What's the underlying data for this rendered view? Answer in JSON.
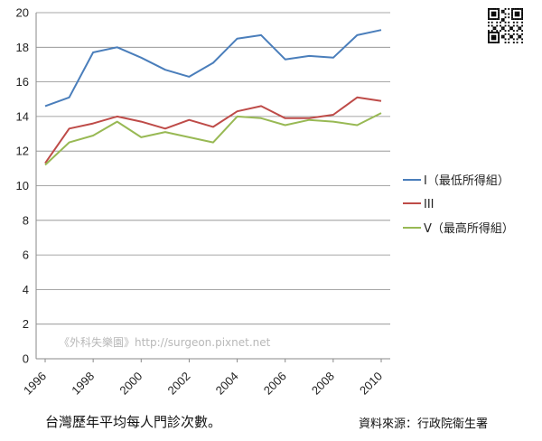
{
  "chart_data": {
    "type": "line",
    "x": [
      1996,
      1997,
      1998,
      1999,
      2000,
      2001,
      2002,
      2003,
      2004,
      2005,
      2006,
      2007,
      2008,
      2009,
      2010
    ],
    "x_tick_labels": [
      "1996",
      "1998",
      "2000",
      "2002",
      "2004",
      "2006",
      "2008",
      "2010"
    ],
    "y_tick_labels": [
      "0",
      "2",
      "4",
      "6",
      "8",
      "10",
      "12",
      "14",
      "16",
      "18",
      "20"
    ],
    "ylim": [
      0,
      20
    ],
    "grid": true,
    "legend_position": "right",
    "title": "",
    "xlabel": "",
    "ylabel": "",
    "series": [
      {
        "name": "I（最低所得組）",
        "color": "#4a7ebb",
        "values": [
          14.6,
          15.1,
          17.7,
          18.0,
          17.4,
          16.7,
          16.3,
          17.1,
          18.5,
          18.7,
          17.3,
          17.5,
          17.4,
          18.7,
          19.0
        ]
      },
      {
        "name": "III",
        "color": "#be4b48",
        "values": [
          11.3,
          13.3,
          13.6,
          14.0,
          13.7,
          13.3,
          13.8,
          13.4,
          14.3,
          14.6,
          13.9,
          13.9,
          14.1,
          15.1,
          14.9
        ]
      },
      {
        "name": "V（最高所得組）",
        "color": "#98b954",
        "values": [
          11.2,
          12.5,
          12.9,
          13.7,
          12.8,
          13.1,
          12.8,
          12.5,
          14.0,
          13.9,
          13.5,
          13.8,
          13.7,
          13.5,
          14.2
        ]
      }
    ]
  },
  "watermark": "《外科失樂園》http://surgeon.pixnet.net",
  "caption_left": "台灣歷年平均每人門診次數。",
  "caption_right": "資料來源：行政院衛生署"
}
